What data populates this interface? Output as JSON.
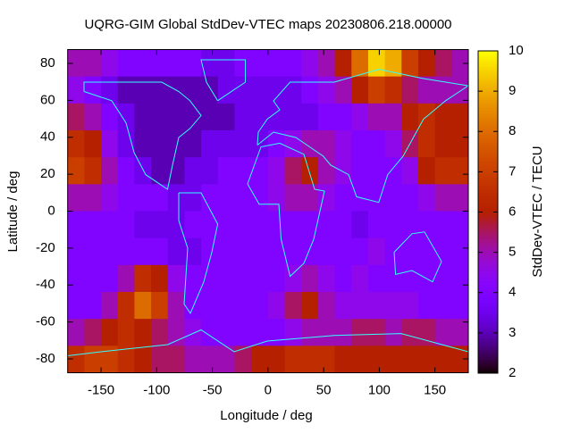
{
  "chart_data": {
    "type": "heatmap",
    "title": "UQRG-GIM Global StdDev-VTEC maps 20230806.218.00000",
    "x_label": "Longitude / deg",
    "y_label": "Latitude / deg",
    "xlim": [
      -180,
      180
    ],
    "ylim": [
      -87.5,
      87.5
    ],
    "xticks": [
      -150,
      -100,
      -50,
      0,
      50,
      100,
      150
    ],
    "yticks": [
      -80,
      -60,
      -40,
      -20,
      0,
      20,
      40,
      60,
      80
    ],
    "z": [
      [
        5,
        5,
        4.5,
        4,
        4,
        4,
        4,
        4,
        3.5,
        3.5,
        4,
        4,
        4,
        4,
        4.5,
        5,
        6,
        8,
        9.5,
        9,
        7,
        6,
        5.5,
        5
      ],
      [
        4.5,
        4,
        3.5,
        3,
        3,
        3,
        3,
        3,
        3,
        3.5,
        3.5,
        3.5,
        3.5,
        3.5,
        4,
        4.5,
        5,
        6,
        7,
        6.5,
        5.5,
        5,
        5,
        5
      ],
      [
        5.5,
        5,
        4,
        3.5,
        3,
        3,
        3,
        3,
        3,
        3,
        3.5,
        3.5,
        3.5,
        3.5,
        3.5,
        4,
        4,
        4.5,
        5,
        5,
        6,
        6.5,
        6,
        6
      ],
      [
        6.5,
        6,
        4.5,
        3.5,
        3,
        3,
        3,
        3,
        3.5,
        3.5,
        3.5,
        3.5,
        4,
        4.5,
        5,
        5,
        4.5,
        4,
        4,
        4.5,
        5.5,
        6.5,
        6,
        6
      ],
      [
        7,
        6.5,
        5,
        4,
        3.5,
        3,
        3,
        3.5,
        3.5,
        4,
        4,
        4,
        4.5,
        5.5,
        6,
        5,
        4.5,
        4,
        4,
        4,
        4.5,
        6,
        6.5,
        6.5
      ],
      [
        5,
        5,
        4.5,
        4,
        4,
        4,
        3.5,
        3.5,
        4,
        4,
        4,
        4,
        4.5,
        5,
        5,
        4.5,
        4,
        4,
        4,
        4,
        4,
        4.5,
        5,
        5
      ],
      [
        4,
        4,
        4,
        4,
        3.5,
        3.5,
        3.5,
        4,
        4,
        4,
        4,
        4,
        4,
        4,
        4,
        4,
        4,
        3.5,
        4,
        4,
        4,
        4,
        4,
        4
      ],
      [
        4,
        4,
        4,
        4,
        4,
        4,
        3.5,
        3.5,
        4,
        4,
        4,
        4,
        4,
        4,
        4,
        4,
        4,
        4,
        4.5,
        4,
        4,
        4,
        4,
        4
      ],
      [
        4,
        4,
        4,
        5,
        6.5,
        6,
        4.5,
        4,
        4,
        4,
        4,
        4,
        4,
        4.5,
        5,
        4.5,
        4,
        4.5,
        4,
        4,
        4,
        4,
        4,
        4
      ],
      [
        4,
        4,
        5,
        6.5,
        8,
        7,
        5,
        4,
        4,
        4,
        4,
        4,
        4.5,
        5.5,
        6,
        5,
        4.5,
        4.5,
        4.5,
        4.5,
        4.5,
        4,
        4,
        4
      ],
      [
        5,
        5.5,
        6,
        6.5,
        6,
        5.5,
        5,
        4.5,
        4,
        4,
        4,
        4,
        4,
        4.5,
        5,
        5,
        5,
        5.5,
        5.5,
        5,
        5.5,
        5.5,
        5,
        5
      ],
      [
        6.5,
        7,
        7,
        6.5,
        6,
        5.5,
        5.5,
        5,
        5,
        5,
        5.5,
        6,
        6,
        6.5,
        6.5,
        6.5,
        6,
        6,
        6,
        6,
        6,
        6,
        6,
        6
      ]
    ],
    "colorbar": {
      "label": "StdDev-VTEC / TECU",
      "lim": [
        2,
        10
      ],
      "ticks": [
        2,
        3,
        4,
        5,
        6,
        7,
        8,
        9,
        10
      ]
    }
  }
}
